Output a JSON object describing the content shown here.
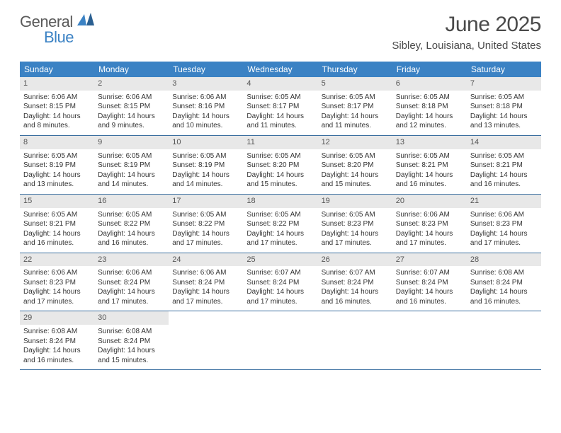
{
  "brand": {
    "word1": "General",
    "word2": "Blue"
  },
  "title": "June 2025",
  "location": "Sibley, Louisiana, United States",
  "colors": {
    "header_bg": "#3b82c4",
    "header_text": "#ffffff",
    "daynum_bg": "#e8e8e8",
    "row_border": "#3b6fa0",
    "body_text": "#333333",
    "title_text": "#4a4a4a"
  },
  "weekdays": [
    "Sunday",
    "Monday",
    "Tuesday",
    "Wednesday",
    "Thursday",
    "Friday",
    "Saturday"
  ],
  "weeks": [
    [
      {
        "n": "1",
        "rise": "6:06 AM",
        "set": "8:15 PM",
        "dl": "14 hours and 8 minutes."
      },
      {
        "n": "2",
        "rise": "6:06 AM",
        "set": "8:15 PM",
        "dl": "14 hours and 9 minutes."
      },
      {
        "n": "3",
        "rise": "6:06 AM",
        "set": "8:16 PM",
        "dl": "14 hours and 10 minutes."
      },
      {
        "n": "4",
        "rise": "6:05 AM",
        "set": "8:17 PM",
        "dl": "14 hours and 11 minutes."
      },
      {
        "n": "5",
        "rise": "6:05 AM",
        "set": "8:17 PM",
        "dl": "14 hours and 11 minutes."
      },
      {
        "n": "6",
        "rise": "6:05 AM",
        "set": "8:18 PM",
        "dl": "14 hours and 12 minutes."
      },
      {
        "n": "7",
        "rise": "6:05 AM",
        "set": "8:18 PM",
        "dl": "14 hours and 13 minutes."
      }
    ],
    [
      {
        "n": "8",
        "rise": "6:05 AM",
        "set": "8:19 PM",
        "dl": "14 hours and 13 minutes."
      },
      {
        "n": "9",
        "rise": "6:05 AM",
        "set": "8:19 PM",
        "dl": "14 hours and 14 minutes."
      },
      {
        "n": "10",
        "rise": "6:05 AM",
        "set": "8:19 PM",
        "dl": "14 hours and 14 minutes."
      },
      {
        "n": "11",
        "rise": "6:05 AM",
        "set": "8:20 PM",
        "dl": "14 hours and 15 minutes."
      },
      {
        "n": "12",
        "rise": "6:05 AM",
        "set": "8:20 PM",
        "dl": "14 hours and 15 minutes."
      },
      {
        "n": "13",
        "rise": "6:05 AM",
        "set": "8:21 PM",
        "dl": "14 hours and 16 minutes."
      },
      {
        "n": "14",
        "rise": "6:05 AM",
        "set": "8:21 PM",
        "dl": "14 hours and 16 minutes."
      }
    ],
    [
      {
        "n": "15",
        "rise": "6:05 AM",
        "set": "8:21 PM",
        "dl": "14 hours and 16 minutes."
      },
      {
        "n": "16",
        "rise": "6:05 AM",
        "set": "8:22 PM",
        "dl": "14 hours and 16 minutes."
      },
      {
        "n": "17",
        "rise": "6:05 AM",
        "set": "8:22 PM",
        "dl": "14 hours and 17 minutes."
      },
      {
        "n": "18",
        "rise": "6:05 AM",
        "set": "8:22 PM",
        "dl": "14 hours and 17 minutes."
      },
      {
        "n": "19",
        "rise": "6:05 AM",
        "set": "8:23 PM",
        "dl": "14 hours and 17 minutes."
      },
      {
        "n": "20",
        "rise": "6:06 AM",
        "set": "8:23 PM",
        "dl": "14 hours and 17 minutes."
      },
      {
        "n": "21",
        "rise": "6:06 AM",
        "set": "8:23 PM",
        "dl": "14 hours and 17 minutes."
      }
    ],
    [
      {
        "n": "22",
        "rise": "6:06 AM",
        "set": "8:23 PM",
        "dl": "14 hours and 17 minutes."
      },
      {
        "n": "23",
        "rise": "6:06 AM",
        "set": "8:24 PM",
        "dl": "14 hours and 17 minutes."
      },
      {
        "n": "24",
        "rise": "6:06 AM",
        "set": "8:24 PM",
        "dl": "14 hours and 17 minutes."
      },
      {
        "n": "25",
        "rise": "6:07 AM",
        "set": "8:24 PM",
        "dl": "14 hours and 17 minutes."
      },
      {
        "n": "26",
        "rise": "6:07 AM",
        "set": "8:24 PM",
        "dl": "14 hours and 16 minutes."
      },
      {
        "n": "27",
        "rise": "6:07 AM",
        "set": "8:24 PM",
        "dl": "14 hours and 16 minutes."
      },
      {
        "n": "28",
        "rise": "6:08 AM",
        "set": "8:24 PM",
        "dl": "14 hours and 16 minutes."
      }
    ],
    [
      {
        "n": "29",
        "rise": "6:08 AM",
        "set": "8:24 PM",
        "dl": "14 hours and 16 minutes."
      },
      {
        "n": "30",
        "rise": "6:08 AM",
        "set": "8:24 PM",
        "dl": "14 hours and 15 minutes."
      },
      null,
      null,
      null,
      null,
      null
    ]
  ],
  "labels": {
    "sunrise_prefix": "Sunrise: ",
    "sunset_prefix": "Sunset: ",
    "daylight_prefix": "Daylight: "
  }
}
